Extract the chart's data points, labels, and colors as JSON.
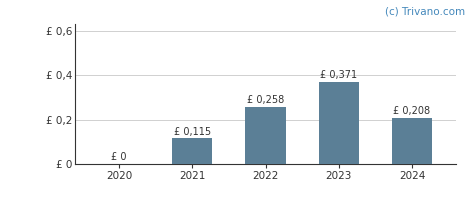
{
  "years": [
    2020,
    2021,
    2022,
    2023,
    2024
  ],
  "values": [
    0,
    0.115,
    0.258,
    0.371,
    0.208
  ],
  "bar_color": "#5b7f96",
  "bar_labels": [
    "£ 0",
    "£ 0,115",
    "£ 0,258",
    "£ 0,371",
    "£ 0,208"
  ],
  "ytick_labels": [
    "£ 0",
    "£ 0,2",
    "£ 0,4",
    "£ 0,6"
  ],
  "ytick_values": [
    0,
    0.2,
    0.4,
    0.6
  ],
  "ylim": [
    0,
    0.63
  ],
  "watermark": "(c) Trivano.com",
  "bar_width": 0.55,
  "background_color": "#ffffff",
  "grid_color": "#d0d0d0",
  "label_fontsize": 7,
  "tick_fontsize": 7.5,
  "watermark_fontsize": 7.5,
  "watermark_color": "#4488bb",
  "spine_color": "#333333",
  "label_color": "#333333",
  "tick_color": "#333333"
}
